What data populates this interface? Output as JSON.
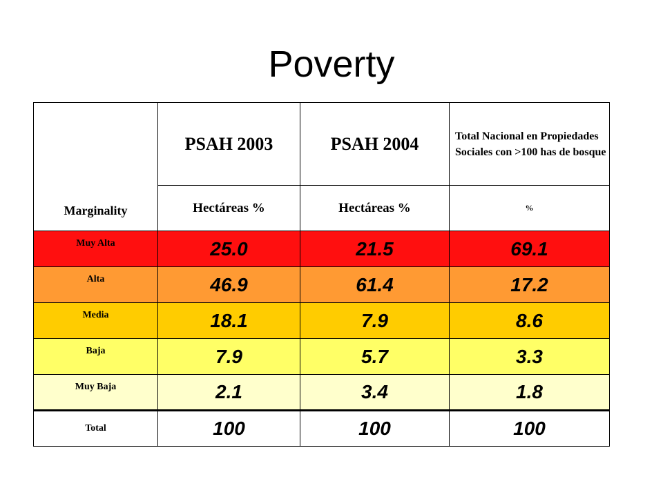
{
  "title": "Poverty",
  "headers": {
    "marginality": "Marginality",
    "psah2003": "PSAH 2003",
    "psah2004": "PSAH 2004",
    "total_nacional": "Total Nacional en Propiedades Sociales con >100 has de bosque",
    "unit_2003": "Hectáreas %",
    "unit_2004": "Hectáreas %",
    "unit_total": "%"
  },
  "rows": [
    {
      "label": "Muy Alta",
      "psah2003": "25.0",
      "psah2004": "21.5",
      "total": "69.1",
      "color": "#ff0f0f"
    },
    {
      "label": "Alta",
      "psah2003": "46.9",
      "psah2004": "61.4",
      "total": "17.2",
      "color": "#ff9a33"
    },
    {
      "label": "Media",
      "psah2003": "18.1",
      "psah2004": "7.9",
      "total": "8.6",
      "color": "#ffcc00"
    },
    {
      "label": "Baja",
      "psah2003": "7.9",
      "psah2004": "5.7",
      "total": "3.3",
      "color": "#ffff66"
    },
    {
      "label": "Muy Baja",
      "psah2003": "2.1",
      "psah2004": "3.4",
      "total": "1.8",
      "color": "#ffffcc"
    },
    {
      "label": "Total",
      "psah2003": "100",
      "psah2004": "100",
      "total": "100",
      "color": "#ffffff"
    }
  ]
}
